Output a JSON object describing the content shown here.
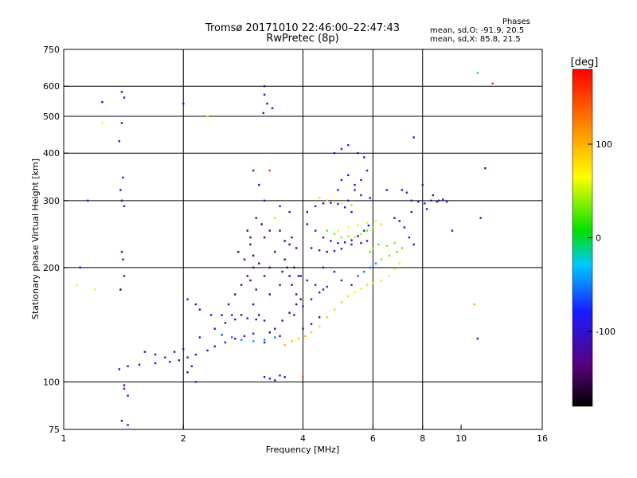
{
  "header": {
    "title": "Tromsø 20171010 22:46:00–22:47:43",
    "subtitle": "RwPretec (8p)"
  },
  "stats": {
    "heading": "Phases",
    "line_o": "mean, sd,O: -91.9, 20.5",
    "line_x": "mean, sd,X:  85.8, 21.5"
  },
  "colorbar": {
    "title": "[deg]",
    "min": -180,
    "max": 180,
    "ticks": [
      {
        "value": 100,
        "label": "100"
      },
      {
        "value": 0,
        "label": "0"
      },
      {
        "value": -100,
        "label": "-100"
      }
    ]
  },
  "chart_data": {
    "type": "scatter",
    "xlabel": "Frequency [MHz]",
    "ylabel": "Stationary phase Virtual Height [km]",
    "xscale": "log",
    "yscale": "log",
    "xlim": [
      1,
      16
    ],
    "ylim": [
      75,
      750
    ],
    "grid": true,
    "xticks": [
      {
        "value": 1,
        "label": "1",
        "major": false
      },
      {
        "value": 2,
        "label": "2",
        "major": true
      },
      {
        "value": 4,
        "label": "4",
        "major": true
      },
      {
        "value": 6,
        "label": "6",
        "major": true
      },
      {
        "value": 8,
        "label": "8",
        "major": true
      },
      {
        "value": 10,
        "label": "10",
        "major": false
      },
      {
        "value": 16,
        "label": "16",
        "major": false
      }
    ],
    "yticks": [
      {
        "value": 75,
        "label": "75",
        "major": false
      },
      {
        "value": 100,
        "label": "100",
        "major": true
      },
      {
        "value": 200,
        "label": "200",
        "major": true
      },
      {
        "value": 300,
        "label": "300",
        "major": true
      },
      {
        "value": 400,
        "label": "400",
        "major": true
      },
      {
        "value": 500,
        "label": "500",
        "major": true
      },
      {
        "value": 600,
        "label": "600",
        "major": true
      },
      {
        "value": 750,
        "label": "750",
        "major": false
      }
    ],
    "points": [
      [
        1.38,
        108,
        -105
      ],
      [
        1.45,
        110,
        -108
      ],
      [
        1.55,
        111,
        -110
      ],
      [
        1.7,
        112,
        -112
      ],
      [
        1.85,
        113,
        -110
      ],
      [
        1.95,
        114,
        -115
      ],
      [
        2.05,
        116,
        -112
      ],
      [
        2.15,
        118,
        -110
      ],
      [
        2.3,
        121,
        -108
      ],
      [
        2.4,
        124,
        -112
      ],
      [
        2.55,
        127,
        -110
      ],
      [
        2.7,
        130,
        -105
      ],
      [
        2.85,
        132,
        -100
      ],
      [
        3.0,
        134,
        -95
      ],
      [
        2.5,
        133,
        -60
      ],
      [
        2.65,
        131,
        -55
      ],
      [
        2.8,
        129,
        -50
      ],
      [
        3.0,
        128,
        -45
      ],
      [
        3.2,
        129,
        -48
      ],
      [
        3.4,
        131,
        -52
      ],
      [
        3.2,
        127,
        -120
      ],
      [
        3.5,
        132,
        -125
      ],
      [
        2.2,
        131,
        -112
      ],
      [
        2.4,
        138,
        -112
      ],
      [
        2.55,
        143,
        -110
      ],
      [
        2.7,
        146,
        -108
      ],
      [
        2.9,
        147,
        -110
      ],
      [
        3.05,
        146,
        -108
      ],
      [
        3.2,
        145,
        -110
      ],
      [
        2.35,
        150,
        -115
      ],
      [
        2.5,
        150,
        -112
      ],
      [
        2.65,
        150,
        -110
      ],
      [
        2.8,
        150,
        -112
      ],
      [
        3.3,
        135,
        -145
      ],
      [
        3.4,
        138,
        -145
      ],
      [
        3.55,
        145,
        -145
      ],
      [
        3.7,
        152,
        -145
      ],
      [
        3.85,
        160,
        -142
      ],
      [
        3.95,
        165,
        -140
      ],
      [
        3.8,
        150,
        -110
      ],
      [
        4.0,
        158,
        -100
      ],
      [
        4.2,
        165,
        -90
      ],
      [
        4.4,
        172,
        -80
      ],
      [
        4.6,
        178,
        -70
      ],
      [
        4.0,
        138,
        -130
      ],
      [
        4.2,
        142,
        -125
      ],
      [
        4.4,
        148,
        -120
      ],
      [
        3.1,
        150,
        -140
      ],
      [
        3.0,
        160,
        -140
      ],
      [
        3.05,
        175,
        -145
      ],
      [
        2.95,
        185,
        -140
      ],
      [
        3.2,
        190,
        -145
      ],
      [
        3.3,
        200,
        -145
      ],
      [
        3.1,
        205,
        -140
      ],
      [
        3.0,
        215,
        -145
      ],
      [
        2.95,
        230,
        -140
      ],
      [
        3.2,
        240,
        -145
      ],
      [
        3.3,
        250,
        -140
      ],
      [
        3.15,
        260,
        -145
      ],
      [
        3.05,
        270,
        -140
      ],
      [
        2.9,
        250,
        -145
      ],
      [
        3.4,
        220,
        -145
      ],
      [
        3.6,
        210,
        -140
      ],
      [
        3.7,
        190,
        -145
      ],
      [
        3.5,
        180,
        -140
      ],
      [
        3.3,
        170,
        -145
      ],
      [
        3.6,
        235,
        -145
      ],
      [
        3.7,
        230,
        -140
      ],
      [
        3.85,
        225,
        -145
      ],
      [
        3.75,
        240,
        -140
      ],
      [
        3.5,
        250,
        -145
      ],
      [
        3.8,
        200,
        -145
      ],
      [
        3.9,
        190,
        -140
      ],
      [
        3.75,
        180,
        -145
      ],
      [
        3.85,
        170,
        -140
      ],
      [
        3.65,
        200,
        -145
      ],
      [
        3.55,
        195,
        -140
      ],
      [
        4.1,
        280,
        -110
      ],
      [
        4.3,
        290,
        -105
      ],
      [
        4.5,
        295,
        -100
      ],
      [
        4.7,
        296,
        -95
      ],
      [
        4.9,
        294,
        -90
      ],
      [
        5.1,
        288,
        -85
      ],
      [
        5.3,
        280,
        -80
      ],
      [
        4.1,
        260,
        -120
      ],
      [
        4.3,
        250,
        -118
      ],
      [
        4.5,
        240,
        -115
      ],
      [
        4.7,
        235,
        -110
      ],
      [
        4.9,
        232,
        -108
      ],
      [
        5.1,
        233,
        -105
      ],
      [
        5.3,
        236,
        -100
      ],
      [
        5.5,
        242,
        -95
      ],
      [
        5.7,
        250,
        -90
      ],
      [
        5.85,
        258,
        -85
      ],
      [
        4.2,
        225,
        -115
      ],
      [
        4.4,
        222,
        -112
      ],
      [
        4.6,
        220,
        -110
      ],
      [
        4.8,
        221,
        -108
      ],
      [
        5.0,
        224,
        -105
      ],
      [
        4.8,
        400,
        -100
      ],
      [
        5.0,
        410,
        -95
      ],
      [
        5.2,
        420,
        -90
      ],
      [
        5.5,
        400,
        -95
      ],
      [
        5.7,
        390,
        -90
      ],
      [
        5.8,
        360,
        -92
      ],
      [
        5.6,
        340,
        -95
      ],
      [
        5.4,
        330,
        -90
      ],
      [
        5.2,
        350,
        -95
      ],
      [
        5.0,
        340,
        -100
      ],
      [
        4.9,
        320,
        -95
      ],
      [
        4.4,
        305,
        80
      ],
      [
        4.6,
        300,
        90
      ],
      [
        4.8,
        298,
        85
      ],
      [
        5.0,
        295,
        80
      ],
      [
        5.3,
        292,
        90
      ],
      [
        4.9,
        250,
        70
      ],
      [
        5.2,
        255,
        65
      ],
      [
        5.5,
        258,
        60
      ],
      [
        5.8,
        262,
        70
      ],
      [
        6.1,
        265,
        75
      ],
      [
        6.3,
        260,
        80
      ],
      [
        4.6,
        250,
        30
      ],
      [
        4.8,
        245,
        35
      ],
      [
        5.0,
        240,
        40
      ],
      [
        5.2,
        242,
        45
      ],
      [
        5.4,
        240,
        50
      ],
      [
        5.6,
        245,
        40
      ],
      [
        5.8,
        250,
        30
      ],
      [
        6.0,
        255,
        35
      ],
      [
        4.2,
        135,
        85
      ],
      [
        4.4,
        140,
        80
      ],
      [
        4.6,
        148,
        85
      ],
      [
        4.8,
        155,
        80
      ],
      [
        5.0,
        162,
        85
      ],
      [
        5.2,
        168,
        80
      ],
      [
        5.4,
        172,
        75
      ],
      [
        5.6,
        176,
        80
      ],
      [
        5.8,
        180,
        85
      ],
      [
        6.0,
        182,
        80
      ],
      [
        6.3,
        185,
        75
      ],
      [
        6.6,
        190,
        70
      ],
      [
        6.8,
        198,
        65
      ],
      [
        7.0,
        205,
        60
      ],
      [
        3.6,
        125,
        100
      ],
      [
        3.75,
        128,
        95
      ],
      [
        3.9,
        130,
        90
      ],
      [
        4.05,
        132,
        95
      ],
      [
        5.5,
        190,
        -60
      ],
      [
        5.7,
        195,
        -55
      ],
      [
        5.9,
        200,
        -50
      ],
      [
        6.1,
        205,
        -45
      ],
      [
        6.3,
        210,
        40
      ],
      [
        6.6,
        215,
        35
      ],
      [
        6.9,
        220,
        30
      ],
      [
        7.1,
        225,
        35
      ],
      [
        7.5,
        300,
        -110
      ],
      [
        7.8,
        298,
        -105
      ],
      [
        8.1,
        295,
        -100
      ],
      [
        8.4,
        300,
        -105
      ],
      [
        8.7,
        298,
        -110
      ],
      [
        9.0,
        302,
        -105
      ],
      [
        9.2,
        298,
        -100
      ],
      [
        8.5,
        310,
        -100
      ],
      [
        8.2,
        285,
        -105
      ],
      [
        6.8,
        270,
        -105
      ],
      [
        7.0,
        265,
        -110
      ],
      [
        7.2,
        255,
        -115
      ],
      [
        7.4,
        240,
        -110
      ],
      [
        7.6,
        230,
        -105
      ],
      [
        7.1,
        320,
        -105
      ],
      [
        7.3,
        315,
        -100
      ],
      [
        6.5,
        320,
        -110
      ],
      [
        3.2,
        103,
        -120
      ],
      [
        3.3,
        102,
        -115
      ],
      [
        3.4,
        101,
        -120
      ],
      [
        3.5,
        104,
        -115
      ],
      [
        3.6,
        103,
        -120
      ],
      [
        4.0,
        103,
        150
      ],
      [
        1.42,
        98,
        -110
      ],
      [
        1.42,
        96,
        -115
      ],
      [
        1.45,
        92,
        -110
      ],
      [
        1.4,
        79,
        -120
      ],
      [
        1.45,
        77,
        -115
      ],
      [
        1.39,
        320,
        -110
      ],
      [
        1.4,
        300,
        -115
      ],
      [
        1.42,
        290,
        -110
      ],
      [
        1.41,
        345,
        -115
      ],
      [
        1.38,
        430,
        -110
      ],
      [
        1.4,
        480,
        -120
      ],
      [
        1.42,
        560,
        -115
      ],
      [
        1.4,
        580,
        -110
      ],
      [
        1.4,
        220,
        -110
      ],
      [
        1.41,
        210,
        -115
      ],
      [
        1.42,
        190,
        -110
      ],
      [
        1.39,
        175,
        -160
      ],
      [
        1.25,
        545,
        -110
      ],
      [
        1.25,
        480,
        60
      ],
      [
        1.15,
        300,
        -110
      ],
      [
        1.08,
        180,
        60
      ],
      [
        1.2,
        175,
        60
      ],
      [
        1.1,
        200,
        -110
      ],
      [
        2.05,
        165,
        -110
      ],
      [
        2.15,
        160,
        -100
      ],
      [
        2.2,
        155,
        -105
      ],
      [
        2.1,
        110,
        -110
      ],
      [
        2.05,
        106,
        -115
      ],
      [
        2.15,
        100,
        -110
      ],
      [
        3.2,
        600,
        -110
      ],
      [
        3.2,
        570,
        -115
      ],
      [
        3.25,
        540,
        -110
      ],
      [
        3.35,
        525,
        -110
      ],
      [
        3.18,
        510,
        -120
      ],
      [
        3.3,
        360,
        155
      ],
      [
        2.0,
        540,
        -110
      ],
      [
        2.3,
        500,
        55
      ],
      [
        3.0,
        360,
        -110
      ],
      [
        3.1,
        330,
        -115
      ],
      [
        3.2,
        300,
        -110
      ],
      [
        3.5,
        290,
        -105
      ],
      [
        3.7,
        280,
        -110
      ],
      [
        3.4,
        270,
        90
      ],
      [
        11.0,
        650,
        -20
      ],
      [
        11.5,
        365,
        -110
      ],
      [
        11.2,
        270,
        -115
      ],
      [
        10.8,
        160,
        100
      ],
      [
        11.0,
        130,
        -80
      ],
      [
        12.0,
        610,
        160
      ],
      [
        8.0,
        330,
        -110
      ],
      [
        8.8,
        300,
        -115
      ],
      [
        9.5,
        250,
        -110
      ],
      [
        7.6,
        440,
        -110
      ],
      [
        7.5,
        280,
        -110
      ],
      [
        5.9,
        220,
        30
      ],
      [
        6.0,
        225,
        40
      ],
      [
        6.2,
        230,
        25
      ],
      [
        6.5,
        228,
        30
      ],
      [
        6.8,
        232,
        35
      ],
      [
        5.3,
        230,
        -95
      ],
      [
        5.6,
        232,
        -90
      ],
      [
        5.8,
        235,
        -88
      ],
      [
        5.2,
        300,
        -100
      ],
      [
        5.4,
        320,
        -95
      ],
      [
        5.6,
        310,
        -90
      ],
      [
        5.9,
        305,
        -85
      ],
      [
        4.5,
        200,
        -110
      ],
      [
        4.8,
        195,
        -105
      ],
      [
        5.0,
        185,
        -100
      ],
      [
        5.3,
        180,
        -95
      ],
      [
        3.95,
        190,
        -100
      ],
      [
        4.1,
        185,
        -95
      ],
      [
        4.3,
        180,
        -90
      ],
      [
        4.5,
        175,
        -80
      ],
      [
        2.6,
        160,
        -140
      ],
      [
        2.7,
        170,
        -145
      ],
      [
        2.8,
        180,
        -140
      ],
      [
        2.9,
        190,
        -145
      ],
      [
        3.0,
        200,
        -145
      ],
      [
        2.85,
        210,
        -140
      ],
      [
        2.75,
        220,
        -140
      ],
      [
        2.95,
        240,
        -145
      ],
      [
        1.6,
        120,
        -110
      ],
      [
        1.7,
        118,
        -115
      ],
      [
        1.8,
        116,
        -110
      ],
      [
        1.9,
        120,
        -108
      ],
      [
        2.0,
        122,
        -110
      ]
    ]
  }
}
